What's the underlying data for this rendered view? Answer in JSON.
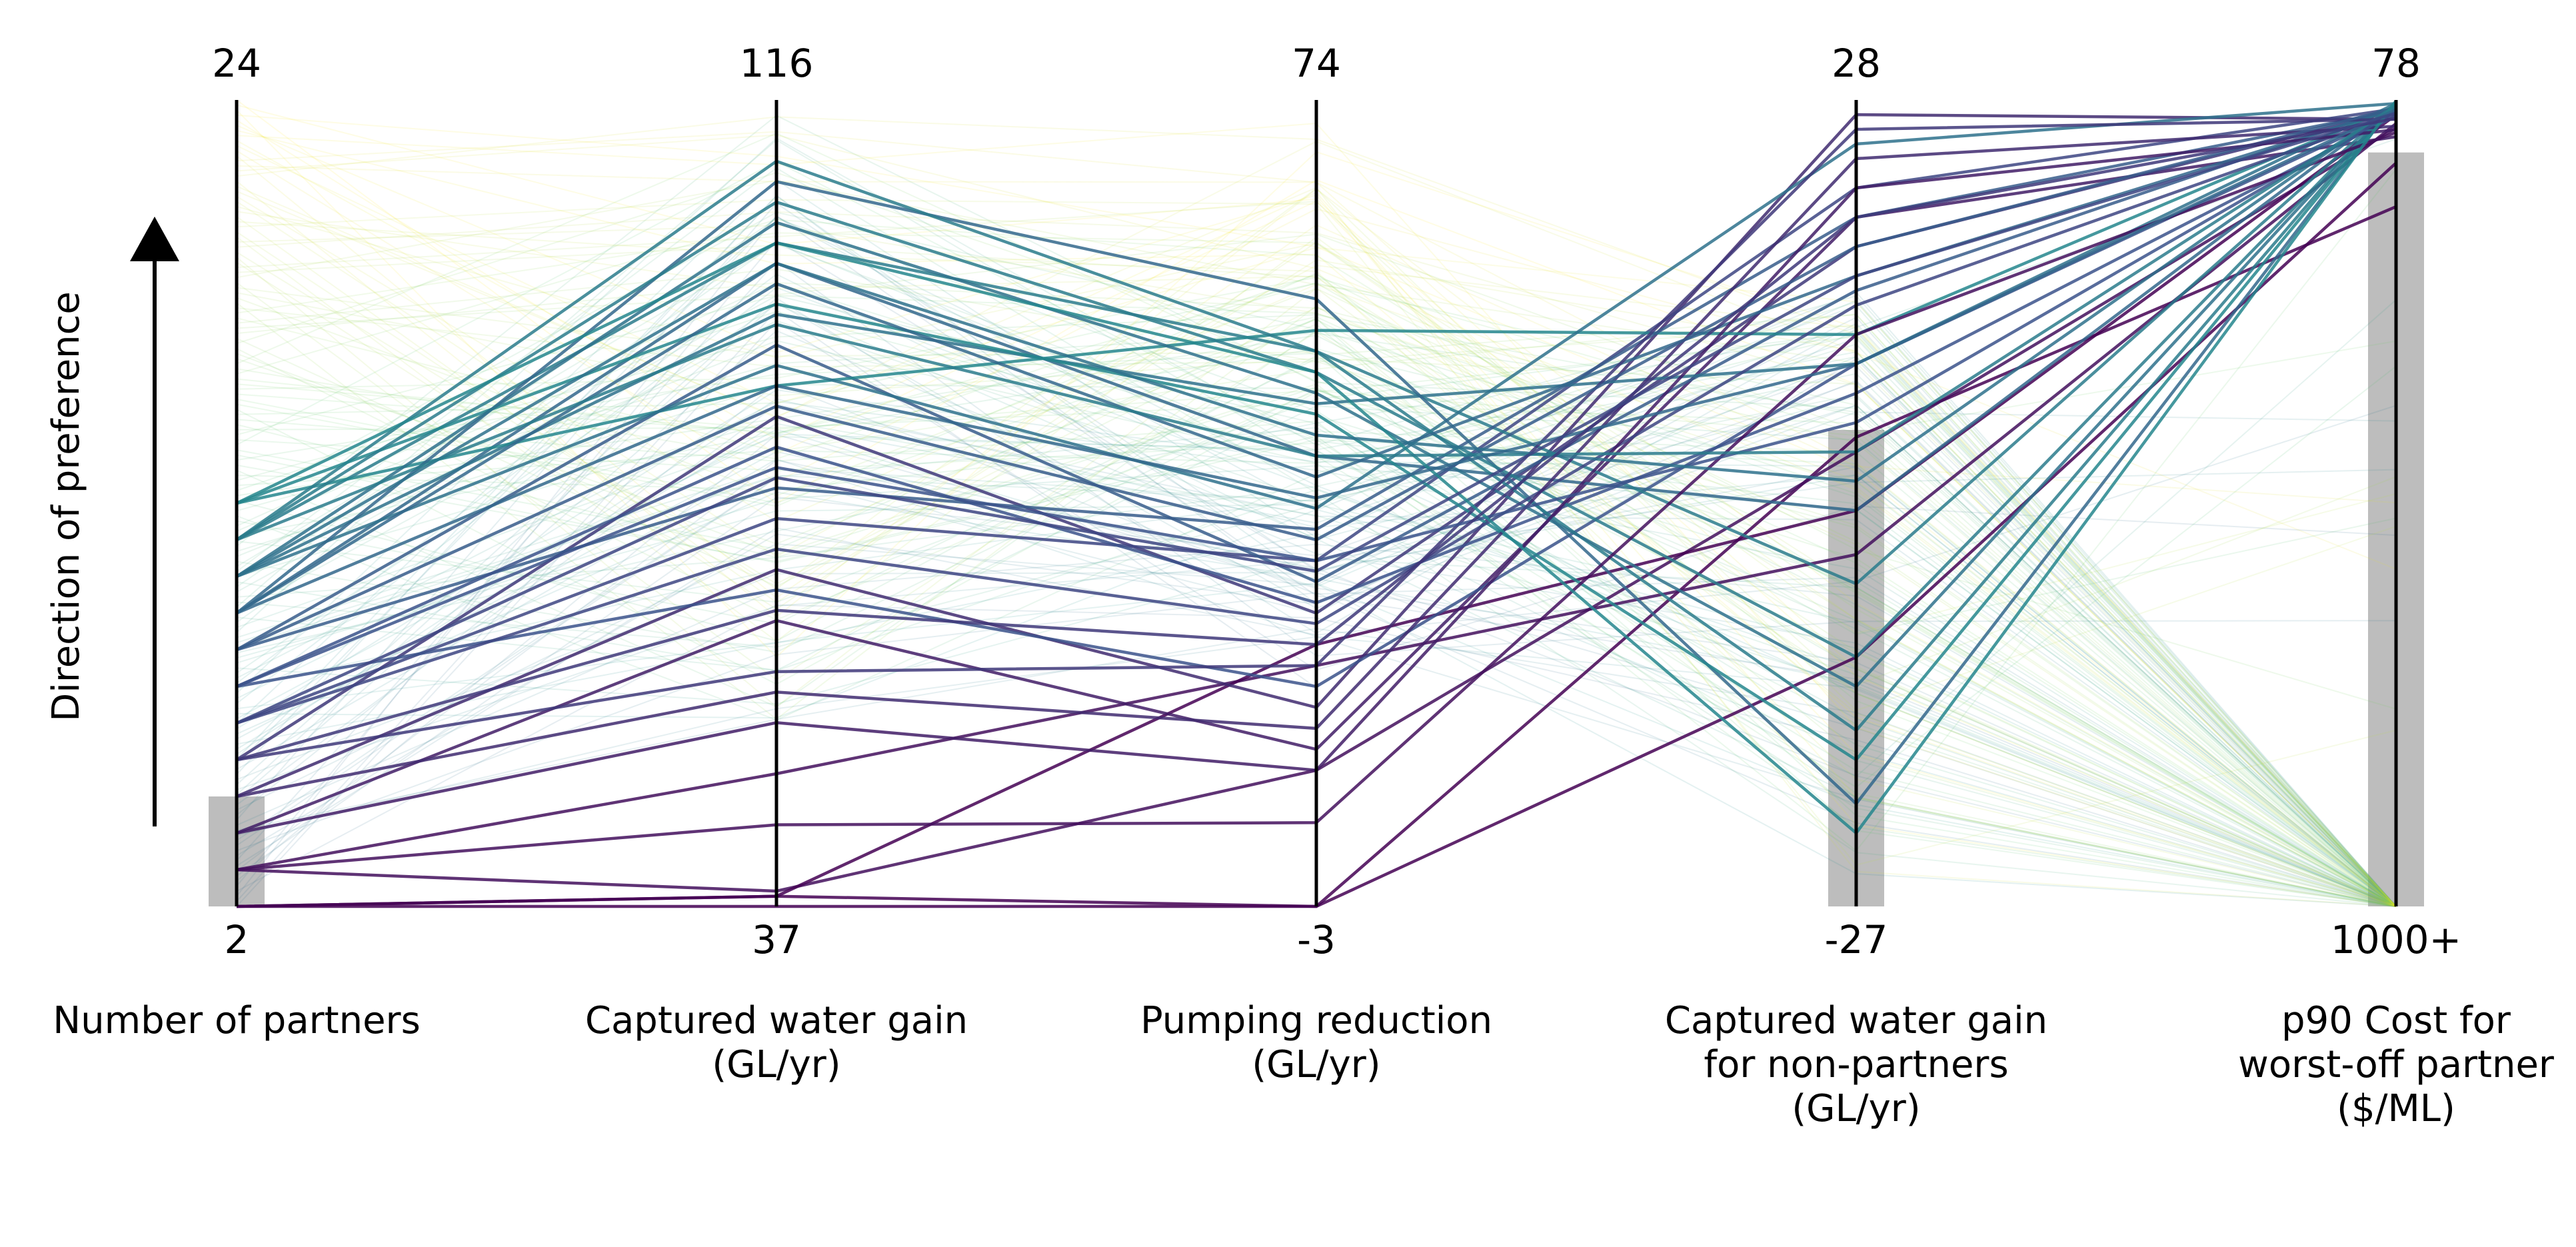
{
  "chart_data": {
    "type": "parallel_coordinates",
    "direction_label": "Direction of preference",
    "axes": [
      {
        "name": "Number of partners",
        "top_label": "24",
        "bottom_label": "2",
        "min": 2,
        "max": 24
      },
      {
        "name": "Captured water gain (GL/yr)",
        "top_label": "116",
        "bottom_label": "37",
        "min": 37,
        "max": 116
      },
      {
        "name": "Pumping reduction (GL/yr)",
        "top_label": "74",
        "bottom_label": "-3",
        "min": -3,
        "max": 74
      },
      {
        "name": "Captured water gain for non-partners (GL/yr)",
        "top_label": "28",
        "bottom_label": "-27",
        "min": -27,
        "max": 28
      },
      {
        "name": "p90 Cost for worst-off partner ($/ML)",
        "top_label": "78",
        "bottom_label": "1000+",
        "min": 1000,
        "max": 78
      }
    ],
    "highlight_bands": [
      {
        "axis": 0,
        "from": 2,
        "to": 5
      },
      {
        "axis": 3,
        "from": -27,
        "to": 5.5
      },
      {
        "axis": 4,
        "from": 1000,
        "to": 138
      }
    ],
    "colormap": [
      "#440154",
      "#3b528b",
      "#21908d",
      "#5dc963",
      "#fde725"
    ],
    "highlighted_solutions": [
      [
        2,
        37,
        -3,
        5,
        200
      ],
      [
        2,
        38,
        -3,
        -10,
        150
      ],
      [
        3,
        38.5,
        10,
        4,
        110
      ],
      [
        3,
        50,
        20,
        -3,
        105
      ],
      [
        2,
        38,
        22,
        0,
        95
      ],
      [
        4,
        65,
        12,
        20,
        120
      ],
      [
        5,
        70,
        16,
        27,
        100
      ],
      [
        6,
        85,
        25,
        18,
        90
      ],
      [
        7,
        75,
        30,
        22,
        88
      ],
      [
        8,
        68,
        18,
        10,
        92
      ],
      [
        9,
        92,
        28,
        15,
        86
      ],
      [
        10,
        100,
        40,
        0,
        84
      ],
      [
        11,
        95,
        45,
        10,
        82
      ],
      [
        12,
        102,
        50,
        -5,
        83
      ],
      [
        13,
        88,
        52,
        12,
        85
      ],
      [
        11,
        90,
        35,
        25,
        82
      ],
      [
        9,
        78,
        33,
        20,
        90
      ],
      [
        8,
        82,
        26,
        8,
        96
      ],
      [
        10,
        108,
        55,
        -20,
        80
      ],
      [
        12,
        110,
        50,
        -15,
        80
      ],
      [
        13,
        96,
        44,
        -17,
        80
      ],
      [
        11,
        104,
        46,
        -12,
        81
      ],
      [
        12,
        106,
        48,
        -10,
        82
      ],
      [
        10,
        98,
        38,
        16,
        88
      ],
      [
        7,
        72,
        24,
        14,
        94
      ],
      [
        6,
        60,
        20,
        26,
        100
      ],
      [
        5,
        58,
        14,
        24,
        108
      ],
      [
        4,
        55,
        10,
        22,
        112
      ],
      [
        3,
        45,
        5,
        12,
        115
      ],
      [
        9,
        86,
        32,
        18,
        87
      ],
      [
        8,
        80,
        30,
        6,
        91
      ],
      [
        11,
        100,
        42,
        2,
        83
      ],
      [
        13,
        102,
        48,
        -22,
        79
      ],
      [
        12,
        94,
        40,
        4,
        85
      ],
      [
        10,
        88,
        36,
        10,
        89
      ],
      [
        6,
        66,
        22,
        20,
        99
      ],
      [
        7,
        79,
        29,
        16,
        93
      ]
    ],
    "background_solution_count": 160
  }
}
